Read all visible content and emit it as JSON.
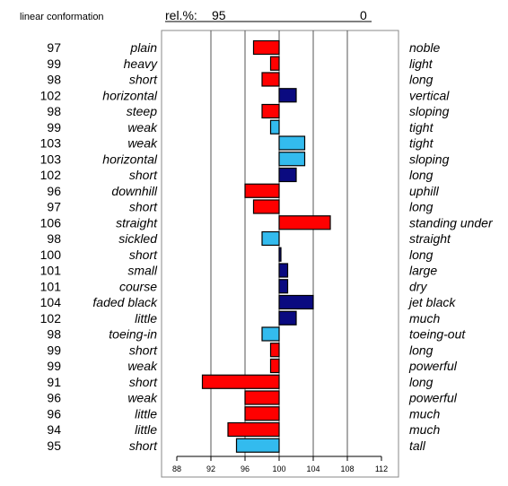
{
  "chart_data": {
    "type": "bar",
    "title": "linear conformation",
    "header_label": "rel.%:",
    "header_left_value": "95",
    "header_right_value": "0",
    "xlim": [
      88,
      112
    ],
    "baseline": 100,
    "x_ticks": [
      88,
      92,
      96,
      100,
      104,
      108,
      112
    ],
    "grid": "vertical",
    "colors": {
      "red": "#ff0000",
      "cyan": "#33bbee",
      "navy": "#0a0a80"
    },
    "rows": [
      {
        "value": 97,
        "left": "plain",
        "right": "noble",
        "color": "red"
      },
      {
        "value": 99,
        "left": "heavy",
        "right": "light",
        "color": "red"
      },
      {
        "value": 98,
        "left": "short",
        "right": "long",
        "color": "red"
      },
      {
        "value": 102,
        "left": "horizontal",
        "right": "vertical",
        "color": "navy"
      },
      {
        "value": 98,
        "left": "steep",
        "right": "sloping",
        "color": "red"
      },
      {
        "value": 99,
        "left": "weak",
        "right": "tight",
        "color": "cyan"
      },
      {
        "value": 103,
        "left": "weak",
        "right": "tight",
        "color": "cyan"
      },
      {
        "value": 103,
        "left": "horizontal",
        "right": "sloping",
        "color": "cyan"
      },
      {
        "value": 102,
        "left": "short",
        "right": "long",
        "color": "navy"
      },
      {
        "value": 96,
        "left": "downhill",
        "right": "uphill",
        "color": "red"
      },
      {
        "value": 97,
        "left": "short",
        "right": "long",
        "color": "red"
      },
      {
        "value": 106,
        "left": "straight",
        "right": "standing under",
        "color": "red"
      },
      {
        "value": 98,
        "left": "sickled",
        "right": "straight",
        "color": "cyan"
      },
      {
        "value": 100,
        "left": "short",
        "right": "long",
        "color": "navy"
      },
      {
        "value": 101,
        "left": "small",
        "right": "large",
        "color": "navy"
      },
      {
        "value": 101,
        "left": "course",
        "right": "dry",
        "color": "navy"
      },
      {
        "value": 104,
        "left": "faded black",
        "right": "jet black",
        "color": "navy"
      },
      {
        "value": 102,
        "left": "little",
        "right": "much",
        "color": "navy"
      },
      {
        "value": 98,
        "left": "toeing-in",
        "right": "toeing-out",
        "color": "cyan"
      },
      {
        "value": 99,
        "left": "short",
        "right": "long",
        "color": "red"
      },
      {
        "value": 99,
        "left": "weak",
        "right": "powerful",
        "color": "red"
      },
      {
        "value": 91,
        "left": "short",
        "right": "long",
        "color": "red"
      },
      {
        "value": 96,
        "left": "weak",
        "right": "powerful",
        "color": "red"
      },
      {
        "value": 96,
        "left": "little",
        "right": "much",
        "color": "red"
      },
      {
        "value": 94,
        "left": "little",
        "right": "much",
        "color": "red"
      },
      {
        "value": 95,
        "left": "short",
        "right": "tall",
        "color": "cyan"
      }
    ]
  }
}
